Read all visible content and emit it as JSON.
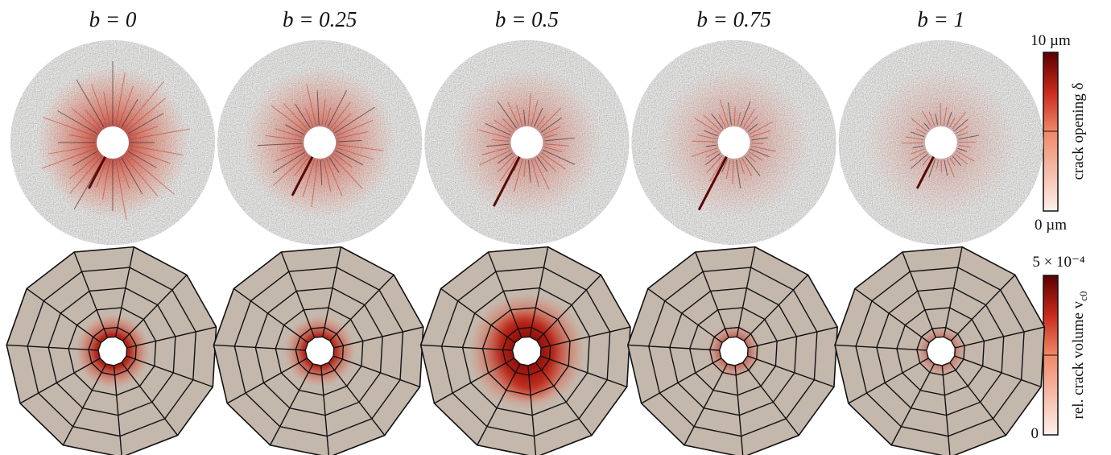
{
  "columns": [
    {
      "label": "b = 0"
    },
    {
      "label": "b = 0.25"
    },
    {
      "label": "b = 0.5"
    },
    {
      "label": "b = 0.75"
    },
    {
      "label": "b = 1"
    }
  ],
  "colorbar_top": {
    "max_label": "10 µm",
    "min_label": "0 µm",
    "title": "crack opening δ"
  },
  "colorbar_bottom": {
    "max_label": "5 × 10⁻⁴",
    "min_label": "0",
    "title": "rel. crack volume v",
    "title_subscript": "c0"
  }
}
